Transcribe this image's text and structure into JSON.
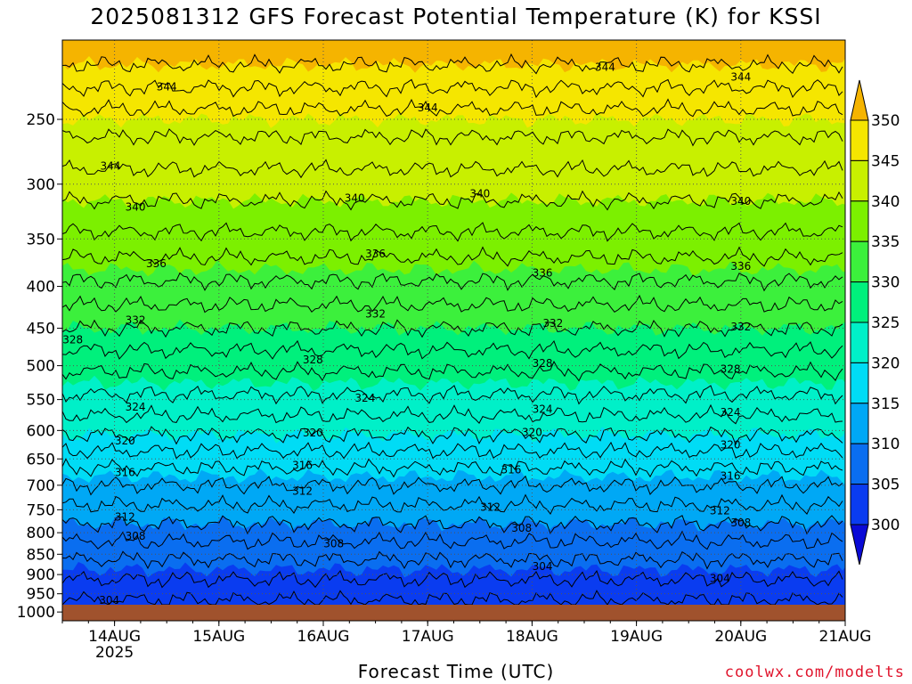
{
  "title": "2025081312 GFS Forecast Potential Temperature (K) for KSSI",
  "xaxis_label": "Forecast Time (UTC)",
  "credit": "coolwx.com/modelts",
  "chart_data": {
    "type": "heatmap",
    "title": "2025081312 GFS Forecast Potential Temperature (K) for KSSI",
    "xlabel": "Forecast Time (UTC)",
    "ylabel": "",
    "x_ticks": [
      "14AUG",
      "15AUG",
      "16AUG",
      "17AUG",
      "18AUG",
      "19AUG",
      "20AUG",
      "21AUG"
    ],
    "x_year_label": "2025",
    "xlim_days": [
      13.5,
      21
    ],
    "y_ticks": [
      250,
      300,
      350,
      400,
      450,
      500,
      550,
      600,
      650,
      700,
      750,
      800,
      850,
      900,
      950,
      1000
    ],
    "ylim": [
      1025,
      200
    ],
    "y_scale": "log",
    "grid": true,
    "colorbar": {
      "levels": [
        300,
        305,
        310,
        315,
        320,
        325,
        330,
        335,
        340,
        345,
        350
      ],
      "labels": [
        "350",
        "345",
        "340",
        "335",
        "330",
        "325",
        "320",
        "315",
        "310",
        "305",
        "300"
      ],
      "colors": [
        "#0a0ad6",
        "#0a3cf0",
        "#0a6ef0",
        "#00a8f5",
        "#00dcf5",
        "#00f0c8",
        "#00f07c",
        "#3cf03c",
        "#7cf000",
        "#c8f000",
        "#f5e600",
        "#f5b400"
      ]
    },
    "theta_profile": [
      {
        "p": 200,
        "theta": 352
      },
      {
        "p": 250,
        "theta": 345
      },
      {
        "p": 300,
        "theta": 341
      },
      {
        "p": 350,
        "theta": 337.5
      },
      {
        "p": 400,
        "theta": 333.5
      },
      {
        "p": 450,
        "theta": 330
      },
      {
        "p": 500,
        "theta": 326.5
      },
      {
        "p": 550,
        "theta": 323.5
      },
      {
        "p": 600,
        "theta": 320.5
      },
      {
        "p": 650,
        "theta": 317
      },
      {
        "p": 700,
        "theta": 314
      },
      {
        "p": 750,
        "theta": 311.5
      },
      {
        "p": 800,
        "theta": 309
      },
      {
        "p": 850,
        "theta": 306.5
      },
      {
        "p": 900,
        "theta": 304.5
      },
      {
        "p": 950,
        "theta": 302.5
      },
      {
        "p": 1000,
        "theta": 301
      },
      {
        "p": 1025,
        "theta": 300
      }
    ],
    "contour_labels": [
      {
        "text": "344",
        "day": 14.5,
        "p": 228
      },
      {
        "text": "344",
        "day": 17.0,
        "p": 242
      },
      {
        "text": "344",
        "day": 18.7,
        "p": 216
      },
      {
        "text": "344",
        "day": 20.0,
        "p": 222
      },
      {
        "text": "344",
        "day": 13.96,
        "p": 285
      },
      {
        "text": "340",
        "day": 14.2,
        "p": 320
      },
      {
        "text": "340",
        "day": 16.3,
        "p": 312
      },
      {
        "text": "340",
        "day": 17.5,
        "p": 308
      },
      {
        "text": "340",
        "day": 20.0,
        "p": 315
      },
      {
        "text": "336",
        "day": 14.4,
        "p": 375
      },
      {
        "text": "336",
        "day": 16.5,
        "p": 365
      },
      {
        "text": "336",
        "day": 18.1,
        "p": 385
      },
      {
        "text": "336",
        "day": 20.0,
        "p": 378
      },
      {
        "text": "332",
        "day": 14.2,
        "p": 440
      },
      {
        "text": "332",
        "day": 16.5,
        "p": 432
      },
      {
        "text": "332",
        "day": 18.2,
        "p": 444
      },
      {
        "text": "332",
        "day": 20.0,
        "p": 448
      },
      {
        "text": "328",
        "day": 13.6,
        "p": 465
      },
      {
        "text": "328",
        "day": 15.9,
        "p": 492
      },
      {
        "text": "328",
        "day": 18.1,
        "p": 497
      },
      {
        "text": "328",
        "day": 19.9,
        "p": 505
      },
      {
        "text": "324",
        "day": 14.2,
        "p": 562
      },
      {
        "text": "324",
        "day": 16.4,
        "p": 548
      },
      {
        "text": "324",
        "day": 18.1,
        "p": 565
      },
      {
        "text": "324",
        "day": 19.9,
        "p": 570
      },
      {
        "text": "320",
        "day": 14.1,
        "p": 618
      },
      {
        "text": "320",
        "day": 15.9,
        "p": 604
      },
      {
        "text": "320",
        "day": 18.0,
        "p": 603
      },
      {
        "text": "320",
        "day": 19.9,
        "p": 625
      },
      {
        "text": "316",
        "day": 14.1,
        "p": 675
      },
      {
        "text": "316",
        "day": 15.8,
        "p": 662
      },
      {
        "text": "316",
        "day": 17.8,
        "p": 670
      },
      {
        "text": "316",
        "day": 19.9,
        "p": 682
      },
      {
        "text": "312",
        "day": 15.8,
        "p": 712
      },
      {
        "text": "312",
        "day": 14.1,
        "p": 765
      },
      {
        "text": "312",
        "day": 17.6,
        "p": 745
      },
      {
        "text": "312",
        "day": 19.8,
        "p": 752
      },
      {
        "text": "308",
        "day": 14.2,
        "p": 808
      },
      {
        "text": "308",
        "day": 16.1,
        "p": 825
      },
      {
        "text": "308",
        "day": 17.9,
        "p": 790
      },
      {
        "text": "308",
        "day": 20.0,
        "p": 778
      },
      {
        "text": "304",
        "day": 13.95,
        "p": 968
      },
      {
        "text": "304",
        "day": 18.1,
        "p": 880
      },
      {
        "text": "304",
        "day": 19.8,
        "p": 910
      }
    ]
  }
}
